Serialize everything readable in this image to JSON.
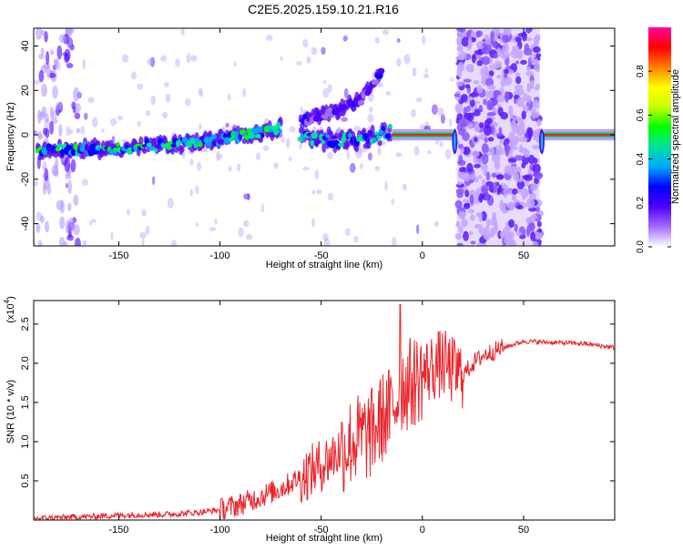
{
  "title": "C2E5.2025.159.10.21.R16",
  "colors": {
    "snr_line": "#e8262c",
    "colormap": [
      "#ffffff",
      "#a46cff",
      "#5000ff",
      "#0000ff",
      "#00a8ff",
      "#00e0a0",
      "#00ff00",
      "#c8ff00",
      "#ffff00",
      "#ff8000",
      "#ff0000",
      "#ff00a0"
    ]
  },
  "chart_data": [
    {
      "type": "heatmap",
      "name": "spectrogram",
      "xlabel": "Height of straight line (km)",
      "ylabel": "Frequency (Hz)",
      "xlim": [
        -192,
        95
      ],
      "ylim": [
        -50,
        48
      ],
      "xticks": [
        -150,
        -100,
        -50,
        0,
        50
      ],
      "yticks": [
        -40,
        -20,
        0,
        20,
        40
      ],
      "grid": false,
      "colorbar": {
        "label": "Normalized spectral amplitude",
        "range": [
          0,
          1
        ],
        "ticks": [
          0.0,
          0.2,
          0.4,
          0.6,
          0.8
        ]
      },
      "features": [
        {
          "description": "main echo ridge",
          "x": [
            -190,
            -150,
            -120,
            -100,
            -80,
            -70
          ],
          "y": [
            -7,
            -6,
            -4,
            -2,
            1,
            3
          ]
        },
        {
          "description": "secondary branch",
          "x": [
            -60,
            -40,
            -25,
            -15
          ],
          "y": [
            -1,
            -3,
            -1,
            2
          ]
        },
        {
          "description": "diverging upper branch",
          "x": [
            -60,
            -45,
            -30,
            -20
          ],
          "y": [
            6,
            10,
            16,
            28
          ]
        },
        {
          "description": "narrow carrier line",
          "x": [
            -15,
            15
          ],
          "y": [
            0,
            0
          ]
        },
        {
          "description": "broadband noise block",
          "x": [
            17,
            58
          ],
          "y": [
            -50,
            48
          ]
        },
        {
          "description": "narrow carrier line",
          "x": [
            60,
            95
          ],
          "y": [
            0,
            0
          ]
        }
      ]
    },
    {
      "type": "line",
      "name": "snr",
      "xlabel": "Height of straight line (km)",
      "ylabel": "SNR (10 * v/v)",
      "y_multiplier": "(x10",
      "y_multiplier_exp": "4",
      "y_multiplier_close": ")",
      "xlim": [
        -192,
        95
      ],
      "ylim": [
        0,
        2.8
      ],
      "xticks": [
        -150,
        -100,
        -50,
        0,
        50
      ],
      "yticks": [
        0.5,
        1.0,
        1.5,
        2.0,
        2.5
      ],
      "ytick_labels": [
        "0.5",
        "1.0",
        "1.5",
        "2.0",
        "2.5"
      ],
      "series": [
        {
          "x": [
            -192,
            -180,
            -170,
            -160,
            -150,
            -140,
            -130,
            -120,
            -110,
            -100,
            -90,
            -80,
            -70,
            -60,
            -50,
            -45,
            -40,
            -35,
            -30,
            -25,
            -20,
            -15,
            -12,
            -10,
            -5,
            0,
            5,
            10,
            15,
            20,
            25,
            30,
            40,
            50,
            60,
            70,
            80,
            95
          ],
          "y": [
            0.02,
            0.03,
            0.04,
            0.05,
            0.06,
            0.07,
            0.07,
            0.08,
            0.1,
            0.13,
            0.2,
            0.3,
            0.4,
            0.55,
            0.7,
            0.8,
            0.9,
            1.0,
            1.05,
            1.1,
            1.3,
            1.4,
            1.6,
            1.7,
            1.75,
            1.85,
            1.95,
            2.0,
            1.9,
            1.85,
            2.0,
            2.1,
            2.2,
            2.28,
            2.27,
            2.26,
            2.25,
            2.2
          ]
        }
      ]
    }
  ]
}
